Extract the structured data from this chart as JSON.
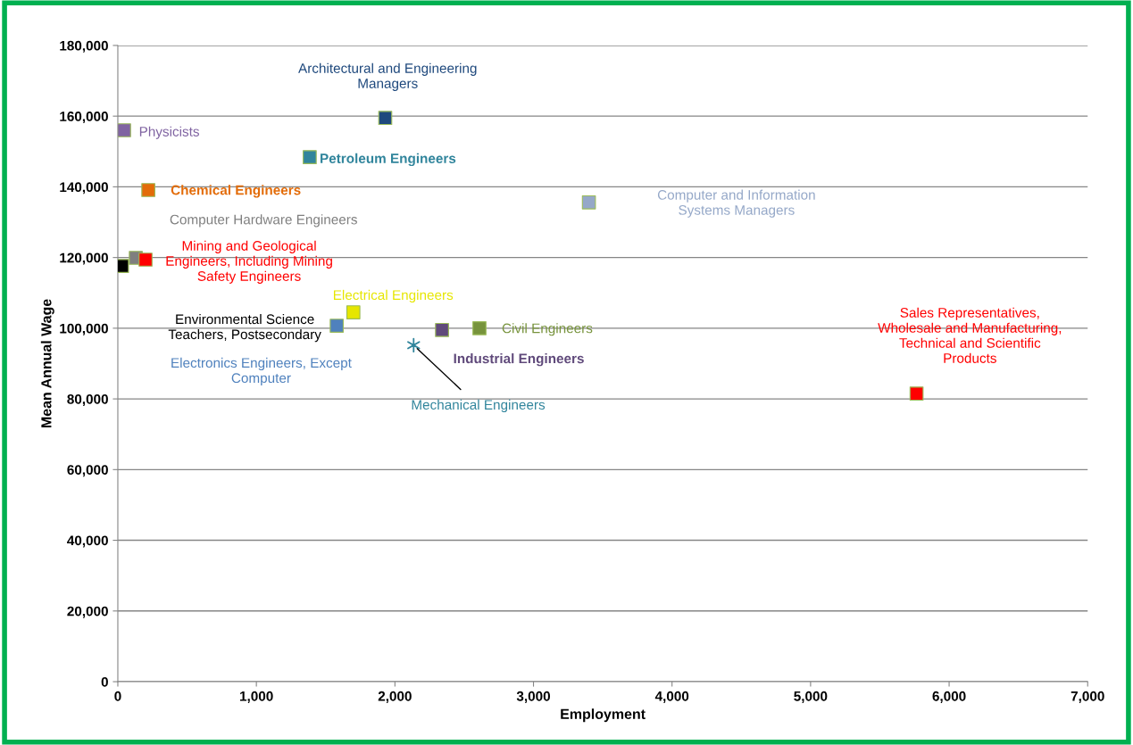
{
  "chart_data": {
    "type": "scatter",
    "xlabel": "Employment",
    "ylabel": "Mean Annual Wage",
    "xlim": [
      0,
      7000
    ],
    "ylim": [
      0,
      180000
    ],
    "xticks": [
      0,
      {
        "value": 1000,
        "label": "1,000"
      },
      {
        "value": 2000,
        "label": "2,000"
      },
      {
        "value": 3000,
        "label": "3,000"
      },
      {
        "value": 4000,
        "label": "4,000"
      },
      {
        "value": 5000,
        "label": "5,000"
      },
      {
        "value": 6000,
        "label": "6,000"
      },
      {
        "value": 7000,
        "label": "7,000"
      }
    ],
    "yticks": [
      0,
      {
        "value": 20000,
        "label": "20,000"
      },
      {
        "value": 40000,
        "label": "40,000"
      },
      {
        "value": 60000,
        "label": "60,000"
      },
      {
        "value": 80000,
        "label": "80,000"
      },
      {
        "value": 100000,
        "label": "100,000"
      },
      {
        "value": 120000,
        "label": "120,000"
      },
      {
        "value": 140000,
        "label": "140,000"
      },
      {
        "value": 160000,
        "label": "160,000"
      },
      {
        "value": 180000,
        "label": "180,000"
      }
    ],
    "grid": "y",
    "legend": false,
    "marker": "square",
    "series": [
      {
        "name": "Physicists",
        "color": "#8064a2",
        "x": [
          45
        ],
        "values": [
          156000
        ]
      },
      {
        "name": "Architectural and Engineering\nManagers",
        "color": "#1f497d",
        "x": [
          1930
        ],
        "values": [
          159500
        ]
      },
      {
        "name": "Petroleum Engineers",
        "color": "#31859c",
        "x": [
          1385
        ],
        "values": [
          148400
        ]
      },
      {
        "name": "Chemical Engineers",
        "color": "#e36c09",
        "x": [
          220
        ],
        "values": [
          139100
        ]
      },
      {
        "name": "Computer and Information\nSystems Managers",
        "color": "#95a8c8",
        "x": [
          3400
        ],
        "values": [
          135600
        ]
      },
      {
        "name": "Computer Hardware Engineers",
        "color": "#7f7f7f",
        "x": [
          130
        ],
        "values": [
          119900
        ]
      },
      {
        "name": "Mining and Geological\nEngineers, Including Mining\nSafety Engineers",
        "color": "#ff0000",
        "x": [
          200
        ],
        "values": [
          119400
        ]
      },
      {
        "name": "Environmental Science\nTeachers, Postsecondary",
        "color": "#000000",
        "x": [
          30
        ],
        "values": [
          117600
        ]
      },
      {
        "name": "Electrical Engineers",
        "color": "#e6e600",
        "x": [
          1700
        ],
        "values": [
          104500
        ]
      },
      {
        "name": "Electronics Engineers, Except\nComputer",
        "color": "#4f81bd",
        "x": [
          1580
        ],
        "values": [
          100700
        ]
      },
      {
        "name": "Industrial Engineers",
        "color": "#604a7b",
        "x": [
          2340
        ],
        "values": [
          99500
        ]
      },
      {
        "name": "Civil Engineers",
        "color": "#77933c",
        "x": [
          2610
        ],
        "values": [
          100000
        ]
      },
      {
        "name": "Mechanical Engineers",
        "color": "#31859c",
        "x": [
          2135
        ],
        "values": [
          95200
        ],
        "marker": "cross"
      },
      {
        "name": "Sales Representatives,\nWholesale and Manufacturing,\nTechnical and Scientific\nProducts",
        "color": "#ff0000",
        "x": [
          5765
        ],
        "values": [
          81500
        ]
      }
    ]
  }
}
